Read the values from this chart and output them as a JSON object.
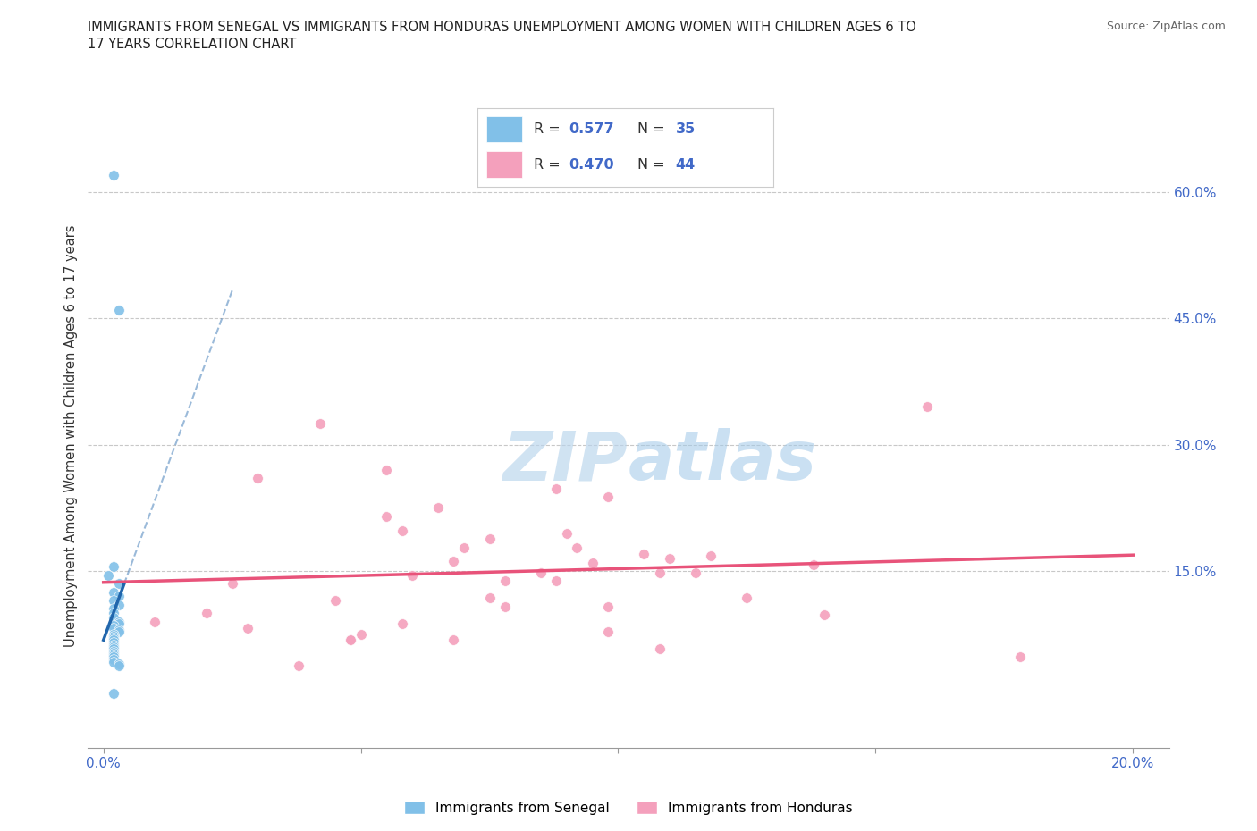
{
  "title_line1": "IMMIGRANTS FROM SENEGAL VS IMMIGRANTS FROM HONDURAS UNEMPLOYMENT AMONG WOMEN WITH CHILDREN AGES 6 TO",
  "title_line2": "17 YEARS CORRELATION CHART",
  "source": "Source: ZipAtlas.com",
  "ylabel": "Unemployment Among Women with Children Ages 6 to 17 years",
  "y_ticks_right": [
    0.15,
    0.3,
    0.45,
    0.6
  ],
  "y_tick_labels_right": [
    "15.0%",
    "30.0%",
    "45.0%",
    "60.0%"
  ],
  "R_senegal": "0.577",
  "N_senegal": "35",
  "R_honduras": "0.470",
  "N_honduras": "44",
  "color_senegal": "#81c0e8",
  "color_honduras": "#f4a0bc",
  "color_senegal_line": "#2166ac",
  "color_honduras_line": "#e8537a",
  "watermark_color": "#c8dff0",
  "senegal_x": [
    0.002,
    0.003,
    0.002,
    0.001,
    0.003,
    0.002,
    0.003,
    0.002,
    0.003,
    0.002,
    0.002,
    0.002,
    0.003,
    0.003,
    0.002,
    0.002,
    0.003,
    0.003,
    0.002,
    0.002,
    0.002,
    0.002,
    0.002,
    0.002,
    0.002,
    0.002,
    0.002,
    0.002,
    0.002,
    0.002,
    0.002,
    0.002,
    0.003,
    0.003,
    0.002
  ],
  "senegal_y": [
    0.62,
    0.46,
    0.155,
    0.145,
    0.135,
    0.125,
    0.12,
    0.115,
    0.11,
    0.105,
    0.1,
    0.095,
    0.09,
    0.088,
    0.085,
    0.082,
    0.08,
    0.078,
    0.075,
    0.073,
    0.07,
    0.068,
    0.065,
    0.062,
    0.06,
    0.058,
    0.055,
    0.052,
    0.05,
    0.048,
    0.045,
    0.042,
    0.04,
    0.038,
    0.005
  ],
  "honduras_x": [
    0.03,
    0.06,
    0.055,
    0.09,
    0.045,
    0.02,
    0.01,
    0.025,
    0.05,
    0.095,
    0.065,
    0.105,
    0.042,
    0.085,
    0.14,
    0.11,
    0.075,
    0.16,
    0.028,
    0.055,
    0.068,
    0.088,
    0.098,
    0.115,
    0.078,
    0.048,
    0.038,
    0.108,
    0.125,
    0.07,
    0.092,
    0.058,
    0.178,
    0.098,
    0.075,
    0.118,
    0.068,
    0.048,
    0.088,
    0.108,
    0.058,
    0.138,
    0.078,
    0.098
  ],
  "honduras_y": [
    0.26,
    0.145,
    0.27,
    0.195,
    0.115,
    0.1,
    0.09,
    0.135,
    0.075,
    0.16,
    0.225,
    0.17,
    0.325,
    0.148,
    0.098,
    0.165,
    0.118,
    0.345,
    0.082,
    0.215,
    0.162,
    0.248,
    0.238,
    0.148,
    0.108,
    0.068,
    0.038,
    0.148,
    0.118,
    0.178,
    0.178,
    0.088,
    0.048,
    0.078,
    0.188,
    0.168,
    0.068,
    0.068,
    0.138,
    0.058,
    0.198,
    0.158,
    0.138,
    0.108
  ],
  "senegal_line_x0": 0.002,
  "senegal_line_x1": 0.003,
  "honduras_line_x0": 0.0,
  "honduras_line_x1": 0.2,
  "xlim_min": -0.003,
  "xlim_max": 0.207,
  "ylim_min": -0.06,
  "ylim_max": 0.68
}
